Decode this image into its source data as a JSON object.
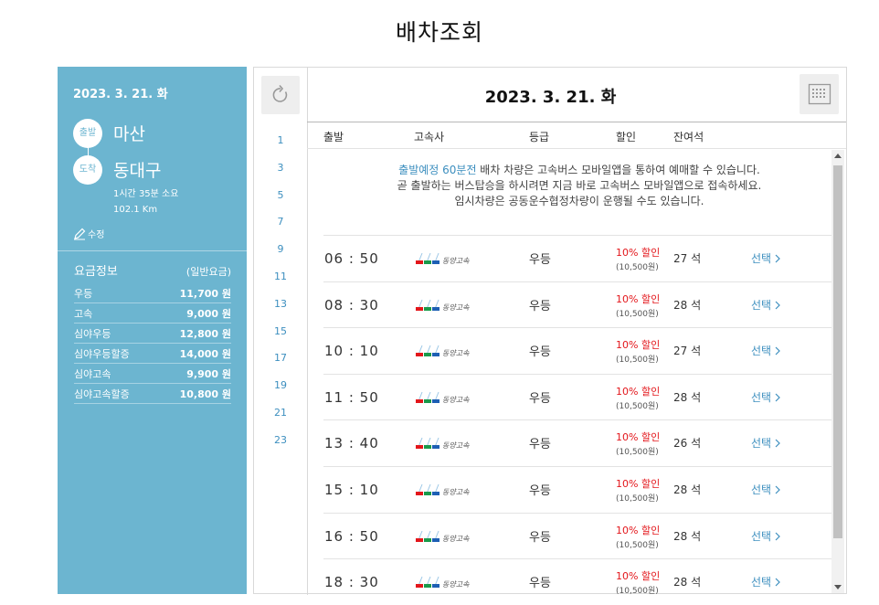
{
  "page_title": "배차조회",
  "left": {
    "date": "2023. 3. 21. 화",
    "dep_badge": "출발",
    "arr_badge": "도착",
    "departure": "마산",
    "arrival": "동대구",
    "duration": "1시간 35분 소요",
    "distance": "102.1 Km",
    "edit_label": "수정",
    "fare_title": "요금정보",
    "fare_note": "(일반요금)",
    "fares": [
      {
        "name": "우등",
        "price": "11,700 원"
      },
      {
        "name": "고속",
        "price": "9,000 원"
      },
      {
        "name": "심야우등",
        "price": "12,800 원"
      },
      {
        "name": "심야우등할증",
        "price": "14,000 원"
      },
      {
        "name": "심야고속",
        "price": "9,900 원"
      },
      {
        "name": "심야고속할증",
        "price": "10,800 원"
      }
    ]
  },
  "right": {
    "date": "2023. 3. 21. 화",
    "hours": [
      "1",
      "3",
      "5",
      "7",
      "9",
      "11",
      "13",
      "15",
      "17",
      "19",
      "21",
      "23"
    ],
    "columns": {
      "dep": "출발",
      "company": "고속사",
      "grade": "등급",
      "discount": "할인",
      "seats": "잔여석"
    },
    "notice": {
      "highlight": "출발예정 60분전",
      "line1_rest": " 배차 차량은 고속버스 모바일앱을 통하여 예매할 수 있습니다.",
      "line2": "곧 출발하는 버스탑승을 하시려면 지금 바로 고속버스 모바일앱으로 접속하세요.",
      "line3": "임시차량은 공동운수협정차량이 운행될 수도 있습니다."
    },
    "company_logo_text": "동양고속",
    "rows": [
      {
        "time": "06 : 50",
        "grade": "우등",
        "discount": "10% 할인",
        "discount_price": "(10,500원)",
        "seats": "27 석",
        "select": "선택"
      },
      {
        "time": "08 : 30",
        "grade": "우등",
        "discount": "10% 할인",
        "discount_price": "(10,500원)",
        "seats": "28 석",
        "select": "선택"
      },
      {
        "time": "10 : 10",
        "grade": "우등",
        "discount": "10% 할인",
        "discount_price": "(10,500원)",
        "seats": "27 석",
        "select": "선택"
      },
      {
        "time": "11 : 50",
        "grade": "우등",
        "discount": "10% 할인",
        "discount_price": "(10,500원)",
        "seats": "28 석",
        "select": "선택"
      },
      {
        "time": "13 : 40",
        "grade": "우등",
        "discount": "10% 할인",
        "discount_price": "(10,500원)",
        "seats": "26 석",
        "select": "선택"
      },
      {
        "time": "15 : 10",
        "grade": "우등",
        "discount": "10% 할인",
        "discount_price": "(10,500원)",
        "seats": "28 석",
        "select": "선택"
      },
      {
        "time": "16 : 50",
        "grade": "우등",
        "discount": "10% 할인",
        "discount_price": "(10,500원)",
        "seats": "28 석",
        "select": "선택"
      },
      {
        "time": "18 : 30",
        "grade": "우등",
        "discount": "10% 할인",
        "discount_price": "(10,500원)",
        "seats": "28 석",
        "select": "선택"
      }
    ]
  },
  "colors": {
    "panel": "#6cb5d0",
    "link": "#3d8fbf",
    "discount": "#e3161b"
  }
}
